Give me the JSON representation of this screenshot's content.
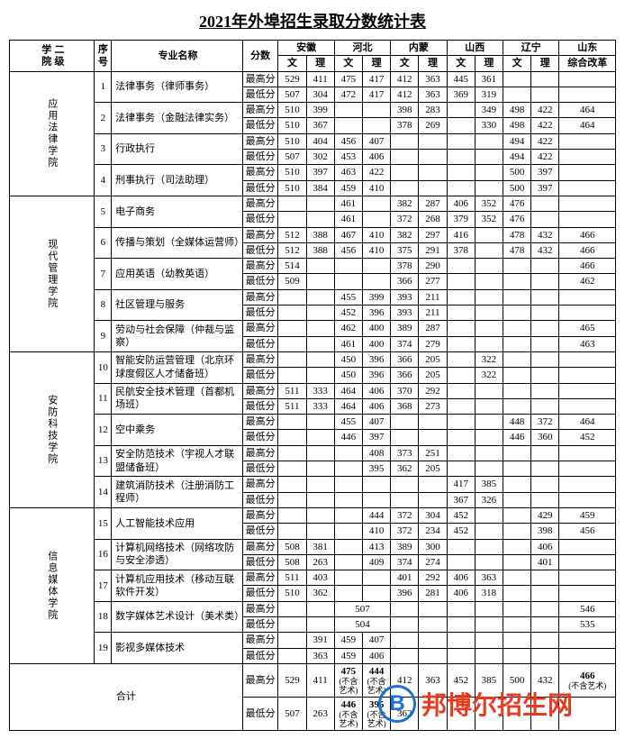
{
  "title": "2021年外埠招生录取分数统计表",
  "headers": {
    "college": "二级学院",
    "seq": "序号",
    "major": "专业名称",
    "score": "分数",
    "provinces": [
      "安徽",
      "河北",
      "内蒙",
      "山西",
      "辽宁",
      "山东"
    ],
    "sub_wen": "文",
    "sub_li": "理",
    "sub_zh": "综合改革"
  },
  "score_labels": {
    "high": "最高分",
    "low": "最低分"
  },
  "colleges": [
    {
      "name": "应用法律学院",
      "majors": [
        {
          "seq": "1",
          "name": "法律事务（律师事务）",
          "high": [
            "529",
            "411",
            "475",
            "417",
            "412",
            "363",
            "445",
            "361",
            "",
            "",
            ""
          ],
          "low": [
            "507",
            "304",
            "472",
            "417",
            "412",
            "363",
            "369",
            "319",
            "",
            "",
            ""
          ]
        },
        {
          "seq": "2",
          "name": "法律事务（金融法律实务）",
          "high": [
            "510",
            "399",
            "",
            "",
            "398",
            "283",
            "",
            "349",
            "498",
            "422",
            "464"
          ],
          "low": [
            "510",
            "367",
            "",
            "",
            "378",
            "269",
            "",
            "330",
            "498",
            "422",
            "464"
          ]
        },
        {
          "seq": "3",
          "name": "行政执行",
          "high": [
            "510",
            "404",
            "456",
            "407",
            "",
            "",
            "",
            "",
            "494",
            "422",
            ""
          ],
          "low": [
            "507",
            "302",
            "453",
            "406",
            "",
            "",
            "",
            "",
            "494",
            "422",
            ""
          ]
        },
        {
          "seq": "4",
          "name": "刑事执行（司法助理）",
          "high": [
            "510",
            "397",
            "463",
            "422",
            "",
            "",
            "",
            "",
            "500",
            "397",
            ""
          ],
          "low": [
            "510",
            "384",
            "459",
            "410",
            "",
            "",
            "",
            "",
            "500",
            "397",
            ""
          ]
        }
      ]
    },
    {
      "name": "现代管理学院",
      "majors": [
        {
          "seq": "5",
          "name": "电子商务",
          "high": [
            "",
            "",
            "461",
            "",
            "382",
            "287",
            "406",
            "352",
            "476",
            "",
            ""
          ],
          "low": [
            "",
            "",
            "461",
            "",
            "372",
            "268",
            "379",
            "352",
            "476",
            "",
            ""
          ]
        },
        {
          "seq": "6",
          "name": "传播与策划（全媒体运营师）",
          "high": [
            "512",
            "388",
            "467",
            "410",
            "382",
            "297",
            "416",
            "",
            "478",
            "432",
            "466"
          ],
          "low": [
            "512",
            "388",
            "456",
            "410",
            "375",
            "291",
            "378",
            "",
            "478",
            "432",
            "466"
          ]
        },
        {
          "seq": "7",
          "name": "应用英语（幼教英语）",
          "high": [
            "514",
            "",
            "",
            "",
            "378",
            "290",
            "",
            "",
            "",
            "",
            "466"
          ],
          "low": [
            "509",
            "",
            "",
            "",
            "366",
            "277",
            "",
            "",
            "",
            "",
            "462"
          ]
        },
        {
          "seq": "8",
          "name": "社区管理与服务",
          "high": [
            "",
            "",
            "455",
            "399",
            "393",
            "211",
            "",
            "",
            "",
            "",
            ""
          ],
          "low": [
            "",
            "",
            "452",
            "396",
            "393",
            "211",
            "",
            "",
            "",
            "",
            ""
          ]
        },
        {
          "seq": "9",
          "name": "劳动与社会保障（仲裁与监察）",
          "high": [
            "",
            "",
            "462",
            "400",
            "389",
            "287",
            "",
            "",
            "",
            "",
            "465"
          ],
          "low": [
            "",
            "",
            "461",
            "400",
            "374",
            "279",
            "",
            "",
            "",
            "",
            "463"
          ]
        }
      ]
    },
    {
      "name": "安防科技学院",
      "majors": [
        {
          "seq": "10",
          "name": "智能安防运营管理（北京环球度假区人才储备班）",
          "high": [
            "",
            "",
            "450",
            "396",
            "366",
            "205",
            "",
            "322",
            "",
            "",
            ""
          ],
          "low": [
            "",
            "",
            "450",
            "396",
            "366",
            "205",
            "",
            "322",
            "",
            "",
            ""
          ]
        },
        {
          "seq": "11",
          "name": "民航安全技术管理（首都机场班）",
          "high": [
            "511",
            "333",
            "464",
            "406",
            "370",
            "292",
            "",
            "",
            "",
            "",
            ""
          ],
          "low": [
            "511",
            "333",
            "464",
            "406",
            "368",
            "273",
            "",
            "",
            "",
            "",
            ""
          ]
        },
        {
          "seq": "12",
          "name": "空中乘务",
          "high": [
            "",
            "",
            "455",
            "407",
            "",
            "",
            "",
            "",
            "448",
            "372",
            "464"
          ],
          "low": [
            "",
            "",
            "446",
            "397",
            "",
            "",
            "",
            "",
            "446",
            "360",
            "452"
          ]
        },
        {
          "seq": "13",
          "name": "安全防范技术（宇视人才联盟储备班）",
          "high": [
            "",
            "",
            "",
            "408",
            "373",
            "251",
            "",
            "",
            "",
            "",
            ""
          ],
          "low": [
            "",
            "",
            "",
            "395",
            "362",
            "205",
            "",
            "",
            "",
            "",
            ""
          ]
        },
        {
          "seq": "14",
          "name": "建筑消防技术（注册消防工程师）",
          "high": [
            "",
            "",
            "",
            "",
            "",
            "",
            "417",
            "385",
            "",
            "",
            ""
          ],
          "low": [
            "",
            "",
            "",
            "",
            "",
            "",
            "367",
            "326",
            "",
            "",
            ""
          ]
        }
      ]
    },
    {
      "name": "信息媒体学院",
      "majors": [
        {
          "seq": "15",
          "name": "人工智能技术应用",
          "high": [
            "",
            "",
            "",
            "444",
            "372",
            "304",
            "452",
            "",
            "",
            "429",
            "459"
          ],
          "low": [
            "",
            "",
            "",
            "410",
            "372",
            "234",
            "452",
            "",
            "",
            "398",
            "456"
          ]
        },
        {
          "seq": "16",
          "name": "计算机网络技术（网络攻防与安全渗透）",
          "high": [
            "508",
            "381",
            "",
            "413",
            "389",
            "300",
            "",
            "",
            "",
            "406",
            ""
          ],
          "low": [
            "508",
            "263",
            "",
            "409",
            "374",
            "274",
            "",
            "",
            "",
            "401",
            ""
          ]
        },
        {
          "seq": "17",
          "name": "计算机应用技术（移动互联软件开发）",
          "high": [
            "511",
            "403",
            "",
            "",
            "401",
            "292",
            "406",
            "363",
            "",
            "",
            ""
          ],
          "low": [
            "510",
            "362",
            "",
            "",
            "396",
            "281",
            "406",
            "318",
            "",
            "",
            ""
          ]
        },
        {
          "seq": "18",
          "name": "数字媒体艺术设计（美术类）",
          "high_merged_hb": "507",
          "high_sd": "546",
          "low_merged_hb": "504",
          "low_sd": "535",
          "high": [
            "",
            "",
            "",
            "",
            "",
            "",
            "",
            "",
            "",
            "",
            ""
          ],
          "low": [
            "",
            "",
            "",
            "",
            "",
            "",
            "",
            "",
            "",
            "",
            ""
          ]
        },
        {
          "seq": "19",
          "name": "影视多媒体技术",
          "high": [
            "",
            "391",
            "459",
            "407",
            "",
            "",
            "",
            "",
            "",
            "",
            ""
          ],
          "low": [
            "",
            "363",
            "459",
            "406",
            "",
            "",
            "",
            "",
            "",
            "",
            ""
          ]
        }
      ]
    }
  ],
  "total": {
    "label": "合计",
    "high": {
      "ah_w": "529",
      "ah_l": "411",
      "hb_w": "475",
      "hb_l": "444",
      "nm_w": "412",
      "nm_l": "363",
      "sx_w": "452",
      "sx_l": "385",
      "ln_w": "500",
      "ln_l": "432",
      "sd": "466"
    },
    "low": {
      "ah_w": "507",
      "ah_l": "263",
      "hb_w": "446",
      "hb_l": "395",
      "nm_w": "362",
      "nm_l": "",
      "sx_w": "",
      "sx_l": "",
      "ln_w": "",
      "ln_l": "",
      "sd": ""
    },
    "note_hb": "(不含艺术)",
    "note_sd": "(不含艺术)"
  },
  "watermark": {
    "letter": "B",
    "text": "邦博尔招生网"
  },
  "colors": {
    "text": "#000000",
    "bg": "#ffffff",
    "wm_blue": "#1b6fd6",
    "wm_red": "#e63b1f"
  }
}
